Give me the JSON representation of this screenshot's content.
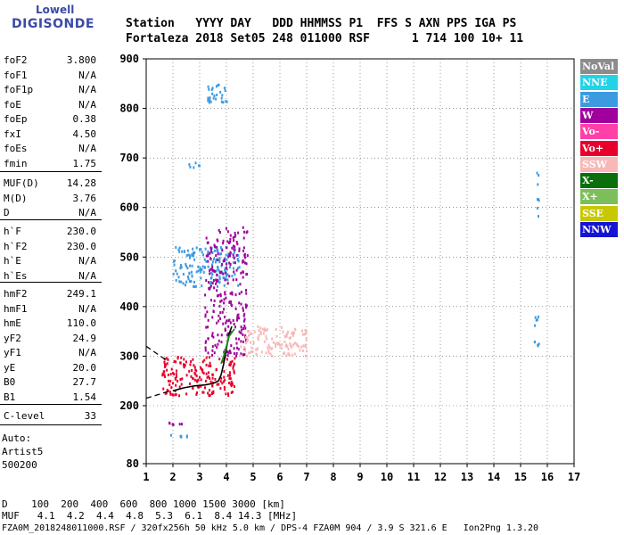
{
  "logo": {
    "brand_top": "Lowell",
    "brand_main": "DIGISONDE"
  },
  "header": {
    "labels": "Station   YYYY DAY   DDD HHMMSS P1  FFS S AXN PPS IGA PS",
    "values": "Fortaleza 2018 Set05 248 011000 RSF      1 714 100 10+ 11"
  },
  "params_group1": [
    {
      "name": "foF2",
      "value": "3.800"
    },
    {
      "name": "foF1",
      "value": "N/A"
    },
    {
      "name": "foF1p",
      "value": "N/A"
    },
    {
      "name": "foE",
      "value": "N/A"
    },
    {
      "name": "foEp",
      "value": "0.38"
    },
    {
      "name": "fxI",
      "value": "4.50"
    },
    {
      "name": "foEs",
      "value": "N/A"
    },
    {
      "name": "fmin",
      "value": "1.75"
    }
  ],
  "params_group2": [
    {
      "name": "MUF(D)",
      "value": "14.28"
    },
    {
      "name": "M(D)",
      "value": "3.76"
    },
    {
      "name": "D",
      "value": "N/A"
    }
  ],
  "params_group3": [
    {
      "name": "h`F",
      "value": "230.0"
    },
    {
      "name": "h`F2",
      "value": "230.0"
    },
    {
      "name": "h`E",
      "value": "N/A"
    },
    {
      "name": "h`Es",
      "value": "N/A"
    }
  ],
  "params_group4": [
    {
      "name": "hmF2",
      "value": "249.1"
    },
    {
      "name": "hmF1",
      "value": "N/A"
    },
    {
      "name": "hmE",
      "value": "110.0"
    },
    {
      "name": "yF2",
      "value": "24.9"
    },
    {
      "name": "yF1",
      "value": "N/A"
    },
    {
      "name": "yE",
      "value": "20.0"
    },
    {
      "name": "B0",
      "value": "27.7"
    },
    {
      "name": "B1",
      "value": "1.54"
    }
  ],
  "c_level": {
    "name": "C-level",
    "value": "33"
  },
  "autoscale": {
    "line1": "Auto:",
    "line2": "Artist5",
    "line3": "500200"
  },
  "legend": [
    {
      "label": "NoVal",
      "bg": "#8c8c8c",
      "fg": "#ffffff"
    },
    {
      "label": "NNE",
      "bg": "#22d3e8",
      "fg": "#ffffff"
    },
    {
      "label": "E",
      "bg": "#3c9be0",
      "fg": "#ffffff"
    },
    {
      "label": "W",
      "bg": "#a0009c",
      "fg": "#ffffff"
    },
    {
      "label": "Vo-",
      "bg": "#ff40a8",
      "fg": "#ffffff"
    },
    {
      "label": "Vo+",
      "bg": "#e8002a",
      "fg": "#ffffff"
    },
    {
      "label": "SSW",
      "bg": "#f8b8b8",
      "fg": "#ffffff"
    },
    {
      "label": "X-",
      "bg": "#0a6e0a",
      "fg": "#ffffff"
    },
    {
      "label": "X+",
      "bg": "#7cbf5a",
      "fg": "#ffffff"
    },
    {
      "label": "SSE",
      "bg": "#c8c800",
      "fg": "#ffffff"
    },
    {
      "label": "NNW",
      "bg": "#1414d2",
      "fg": "#ffffff"
    }
  ],
  "bottom": {
    "d_line": "D    100  200  400  600  800 1000 1500 3000 [km]",
    "muf_line": "MUF   4.1  4.2  4.4  4.8  5.3  6.1  8.4 14.3 [MHz]",
    "footer": "FZA0M_2018248011000.RSF / 320fx256h 50 kHz 5.0 km / DPS-4 FZA0M 904 / 3.9 S 321.6 E   Ion2Png 1.3.20"
  },
  "chart_data": {
    "type": "scatter",
    "x_ticks": [
      1,
      2,
      3,
      4,
      5,
      6,
      7,
      8,
      9,
      10,
      11,
      12,
      13,
      14,
      15,
      16,
      17
    ],
    "y_ticks": [
      80,
      200,
      300,
      400,
      500,
      600,
      700,
      800,
      900
    ],
    "xlim": [
      1,
      17
    ],
    "ylim": [
      80,
      900
    ],
    "grid": true,
    "legend_position": "right",
    "echo_clusters": [
      {
        "type": "E",
        "x": [
          2.0,
          4.5
        ],
        "y": [
          440,
          520
        ]
      },
      {
        "type": "E",
        "x": [
          2.6,
          3.0
        ],
        "y": [
          680,
          690
        ]
      },
      {
        "type": "E",
        "x": [
          3.3,
          4.1
        ],
        "y": [
          810,
          850
        ]
      },
      {
        "type": "W",
        "x": [
          3.2,
          4.8
        ],
        "y": [
          300,
          560
        ]
      },
      {
        "type": "Vo+",
        "x": [
          1.6,
          4.4
        ],
        "y": [
          220,
          300
        ]
      },
      {
        "type": "SSW",
        "x": [
          4.5,
          7.0
        ],
        "y": [
          300,
          360
        ]
      },
      {
        "type": "W",
        "x": [
          1.8,
          2.4
        ],
        "y": [
          160,
          165
        ]
      },
      {
        "type": "E",
        "x": [
          1.9,
          2.6
        ],
        "y": [
          135,
          140
        ]
      },
      {
        "type": "E",
        "x": [
          15.5,
          15.7
        ],
        "y": [
          320,
          380
        ]
      },
      {
        "type": "E",
        "x": [
          15.6,
          15.7
        ],
        "y": [
          570,
          670
        ]
      }
    ],
    "trace_solid": {
      "x": [
        2.0,
        2.4,
        2.8,
        3.2,
        3.5,
        3.7,
        3.8,
        3.9,
        4.0,
        4.1,
        4.2
      ],
      "y": [
        230,
        236,
        240,
        242,
        245,
        250,
        262,
        285,
        315,
        345,
        360
      ]
    },
    "trace_dashed": {
      "x": [
        1.0,
        1.3,
        1.6,
        1.9
      ],
      "y": [
        215,
        220,
        225,
        230
      ]
    },
    "trace_dashed_upper": {
      "x": [
        1.0,
        1.4,
        1.8
      ],
      "y": [
        320,
        305,
        290
      ]
    },
    "trace_green": {
      "x": [
        3.8,
        3.9,
        4.0,
        4.1,
        4.3
      ],
      "y": [
        285,
        300,
        320,
        340,
        355
      ]
    }
  }
}
